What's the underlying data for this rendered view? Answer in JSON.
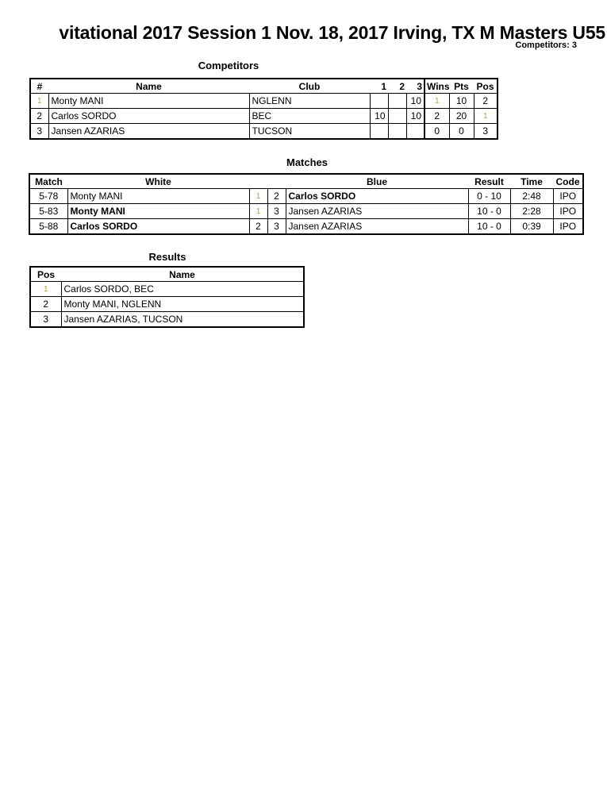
{
  "header": {
    "title": "vitational 2017 Session 1  Nov. 18, 2017  Irving, TX   M Masters U55",
    "competitors_count": "Competitors: 3"
  },
  "competitors": {
    "title": "Competitors",
    "columns": [
      "#",
      "Name",
      "Club",
      "1",
      "2",
      "3",
      "Wins",
      "Pts",
      "Pos"
    ],
    "rows": [
      {
        "num": "1",
        "name": "Monty MANI",
        "club": "NGLENN",
        "s1": "",
        "s2": "",
        "s3": "10",
        "wins": "1",
        "pts": "10",
        "pos": "2"
      },
      {
        "num": "2",
        "name": "Carlos SORDO",
        "club": "BEC",
        "s1": "10",
        "s2": "",
        "s3": "10",
        "wins": "2",
        "pts": "20",
        "pos": "1"
      },
      {
        "num": "3",
        "name": "Jansen AZARIAS",
        "club": "TUCSON",
        "s1": "",
        "s2": "",
        "s3": "",
        "wins": "0",
        "pts": "0",
        "pos": "3"
      }
    ]
  },
  "matches": {
    "title": "Matches",
    "columns": [
      "Match",
      "White",
      "Blue",
      "Result",
      "Time",
      "Code"
    ],
    "rows": [
      {
        "match": "5-78",
        "white": "Monty MANI",
        "white_winner": false,
        "white_num": "1",
        "blue_num": "2",
        "blue": "Carlos SORDO",
        "blue_winner": true,
        "result": "0 - 10",
        "time": "2:48",
        "code": "IPO"
      },
      {
        "match": "5-83",
        "white": "Monty MANI",
        "white_winner": true,
        "white_num": "1",
        "blue_num": "3",
        "blue": "Jansen AZARIAS",
        "blue_winner": false,
        "result": "10 - 0",
        "time": "2:28",
        "code": "IPO"
      },
      {
        "match": "5-88",
        "white": "Carlos SORDO",
        "white_winner": true,
        "white_num": "2",
        "blue_num": "3",
        "blue": "Jansen AZARIAS",
        "blue_winner": false,
        "result": "10 - 0",
        "time": "0:39",
        "code": "IPO"
      }
    ]
  },
  "results": {
    "title": "Results",
    "columns": [
      "Pos",
      "Name"
    ],
    "rows": [
      {
        "pos": "1",
        "name": "Carlos SORDO, BEC"
      },
      {
        "pos": "2",
        "name": "Monty MANI, NGLENN"
      },
      {
        "pos": "3",
        "name": "Jansen AZARIAS, TUCSON"
      }
    ]
  },
  "colors": {
    "text": "#000000",
    "highlight_one": "#c89a3c"
  }
}
